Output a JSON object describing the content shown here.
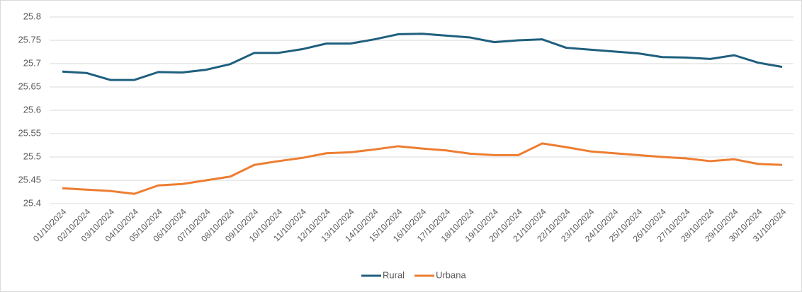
{
  "chart_data": {
    "type": "line",
    "x": [
      "01/10/2024",
      "02/10/2024",
      "03/10/2024",
      "04/10/2024",
      "05/10/2024",
      "06/10/2024",
      "07/10/2024",
      "08/10/2024",
      "09/10/2024",
      "10/10/2024",
      "11/10/2024",
      "12/10/2024",
      "13/10/2024",
      "14/10/2024",
      "15/10/2024",
      "16/10/2024",
      "17/10/2024",
      "18/10/2024",
      "19/10/2024",
      "20/10/2024",
      "21/10/2024",
      "22/10/2024",
      "23/10/2024",
      "24/10/2024",
      "25/10/2024",
      "26/10/2024",
      "27/10/2024",
      "28/10/2024",
      "29/10/2024",
      "30/10/2024",
      "31/10/2024"
    ],
    "series": [
      {
        "name": "Rural",
        "color": "#1f5f7e",
        "values": [
          25.683,
          25.68,
          25.665,
          25.665,
          25.682,
          25.681,
          25.687,
          25.699,
          25.723,
          25.723,
          25.731,
          25.743,
          25.743,
          25.752,
          25.763,
          25.764,
          25.76,
          25.756,
          25.746,
          25.75,
          25.752,
          25.734,
          25.73,
          25.726,
          25.722,
          25.714,
          25.713,
          25.71,
          25.718,
          25.702,
          25.693
        ]
      },
      {
        "name": "Urbana",
        "color": "#ed7d31",
        "values": [
          25.433,
          25.43,
          25.427,
          25.421,
          25.439,
          25.442,
          25.45,
          25.458,
          25.483,
          25.491,
          25.498,
          25.508,
          25.51,
          25.516,
          25.523,
          25.518,
          25.514,
          25.507,
          25.504,
          25.504,
          25.529,
          25.521,
          25.512,
          25.508,
          25.504,
          25.5,
          25.497,
          25.491,
          25.495,
          25.485,
          25.483
        ]
      }
    ],
    "ylim": [
      25.4,
      25.8
    ],
    "yticks": [
      25.4,
      25.45,
      25.5,
      25.55,
      25.6,
      25.65,
      25.7,
      25.75,
      25.8
    ],
    "grid": true,
    "legend": "bottom"
  }
}
